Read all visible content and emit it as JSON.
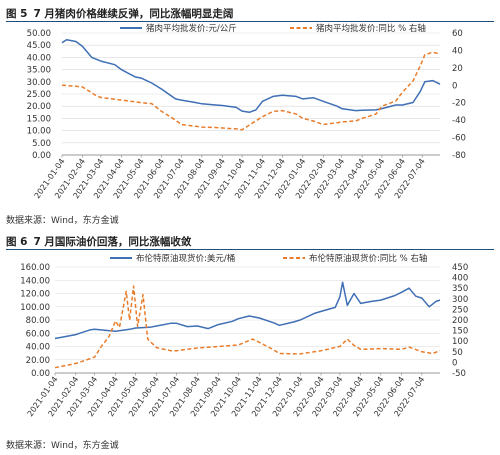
{
  "figures": [
    {
      "number": "图 5",
      "title": "7 月猪肉价格继续反弹，同比涨幅明显走阔",
      "source": "数据来源：Wind，东方金诚"
    },
    {
      "number": "图 6",
      "title": "7 月国际油价回落，同比涨幅收敛",
      "source": "数据来源：Wind，东方金诚"
    }
  ],
  "colors": {
    "blue": "#3f6fb5",
    "orange": "#e87c2b",
    "grid": "#d9d9d9",
    "axis": "#7f7f7f"
  },
  "chart_data": [
    {
      "type": "line",
      "x_ticks": [
        "2021-01-04",
        "2021-02-04",
        "2021-03-04",
        "2021-04-04",
        "2021-05-04",
        "2021-06-04",
        "2021-07-04",
        "2021-08-04",
        "2021-09-04",
        "2021-10-04",
        "2021-11-04",
        "2021-12-04",
        "2022-01-04",
        "2022-02-04",
        "2022-03-04",
        "2022-04-04",
        "2022-05-04",
        "2022-06-04",
        "2022-07-04"
      ],
      "x_range": [
        "2021-01-04",
        "2022-07-31"
      ],
      "y_left": {
        "ticks": [
          "0.00",
          "5.00",
          "10.00",
          "15.00",
          "20.00",
          "25.00",
          "30.00",
          "35.00",
          "40.00",
          "45.00",
          "50.00"
        ],
        "range": [
          0,
          50
        ]
      },
      "y_right": {
        "ticks": [
          "-80",
          "-60",
          "-40",
          "-20",
          "0",
          "20",
          "40",
          "60"
        ],
        "range": [
          -80,
          60
        ]
      },
      "legend_position": "top",
      "series": [
        {
          "name": "猪肉平均批发价:元/公斤",
          "axis": "left",
          "style": "solid",
          "points": [
            [
              "2021-01-04",
              46
            ],
            [
              "2021-01-11",
              47.2
            ],
            [
              "2021-01-25",
              46.5
            ],
            [
              "2021-02-04",
              44.5
            ],
            [
              "2021-02-18",
              40
            ],
            [
              "2021-03-04",
              38.5
            ],
            [
              "2021-03-25",
              37
            ],
            [
              "2021-04-04",
              35
            ],
            [
              "2021-04-25",
              32
            ],
            [
              "2021-05-04",
              31.5
            ],
            [
              "2021-05-20",
              29.5
            ],
            [
              "2021-06-04",
              27
            ],
            [
              "2021-06-25",
              23
            ],
            [
              "2021-07-04",
              22.5
            ],
            [
              "2021-07-25",
              21.5
            ],
            [
              "2021-08-04",
              21
            ],
            [
              "2021-08-25",
              20.5
            ],
            [
              "2021-09-04",
              20.3
            ],
            [
              "2021-09-25",
              19.5
            ],
            [
              "2021-10-04",
              18
            ],
            [
              "2021-10-15",
              17.5
            ],
            [
              "2021-10-25",
              18.5
            ],
            [
              "2021-11-04",
              22
            ],
            [
              "2021-11-20",
              24
            ],
            [
              "2021-12-04",
              24.5
            ],
            [
              "2021-12-25",
              24
            ],
            [
              "2022-01-04",
              23
            ],
            [
              "2022-01-20",
              23.5
            ],
            [
              "2022-02-04",
              22
            ],
            [
              "2022-02-25",
              20
            ],
            [
              "2022-03-04",
              19
            ],
            [
              "2022-03-25",
              18.2
            ],
            [
              "2022-04-04",
              18.3
            ],
            [
              "2022-04-25",
              18.5
            ],
            [
              "2022-05-04",
              19
            ],
            [
              "2022-05-25",
              20.5
            ],
            [
              "2022-06-04",
              20.5
            ],
            [
              "2022-06-20",
              21.5
            ],
            [
              "2022-07-01",
              26
            ],
            [
              "2022-07-08",
              30
            ],
            [
              "2022-07-20",
              30.5
            ],
            [
              "2022-07-31",
              29
            ]
          ]
        },
        {
          "name": "猪肉平均批发价:同比 % 右轴",
          "axis": "right",
          "style": "dashed",
          "points": [
            [
              "2021-01-04",
              0
            ],
            [
              "2021-01-25",
              -1
            ],
            [
              "2021-02-04",
              -2
            ],
            [
              "2021-02-25",
              -12
            ],
            [
              "2021-03-04",
              -14
            ],
            [
              "2021-03-25",
              -16
            ],
            [
              "2021-04-04",
              -17
            ],
            [
              "2021-04-25",
              -19
            ],
            [
              "2021-05-04",
              -20
            ],
            [
              "2021-05-20",
              -21
            ],
            [
              "2021-06-04",
              -30
            ],
            [
              "2021-06-25",
              -40
            ],
            [
              "2021-07-04",
              -45
            ],
            [
              "2021-07-25",
              -47
            ],
            [
              "2021-08-04",
              -48
            ],
            [
              "2021-08-25",
              -48.5
            ],
            [
              "2021-09-04",
              -49
            ],
            [
              "2021-09-25",
              -50
            ],
            [
              "2021-10-04",
              -51
            ],
            [
              "2021-11-04",
              -36
            ],
            [
              "2021-11-20",
              -30
            ],
            [
              "2021-12-04",
              -29
            ],
            [
              "2021-12-25",
              -33
            ],
            [
              "2022-01-04",
              -38
            ],
            [
              "2022-01-20",
              -41
            ],
            [
              "2022-02-04",
              -45
            ],
            [
              "2022-02-25",
              -43
            ],
            [
              "2022-03-04",
              -42
            ],
            [
              "2022-03-25",
              -41
            ],
            [
              "2022-04-04",
              -38
            ],
            [
              "2022-04-25",
              -33
            ],
            [
              "2022-05-04",
              -24
            ],
            [
              "2022-05-25",
              -18
            ],
            [
              "2022-06-04",
              -8
            ],
            [
              "2022-06-20",
              5
            ],
            [
              "2022-07-01",
              22
            ],
            [
              "2022-07-08",
              35
            ],
            [
              "2022-07-20",
              38
            ],
            [
              "2022-07-31",
              36
            ]
          ]
        }
      ]
    },
    {
      "type": "line",
      "x_ticks": [
        "2021-01-04",
        "2021-02-04",
        "2021-03-04",
        "2021-04-04",
        "2021-05-04",
        "2021-06-04",
        "2021-07-04",
        "2021-08-04",
        "2021-09-04",
        "2021-10-04",
        "2021-11-04",
        "2021-12-04",
        "2022-01-04",
        "2022-02-04",
        "2022-03-04",
        "2022-04-04",
        "2022-05-04",
        "2022-06-04",
        "2022-07-04"
      ],
      "x_range": [
        "2021-01-04",
        "2022-07-31"
      ],
      "y_left": {
        "ticks": [
          "0.00",
          "20.00",
          "40.00",
          "60.00",
          "80.00",
          "100.00",
          "120.00",
          "140.00",
          "160.00"
        ],
        "range": [
          0,
          160
        ]
      },
      "y_right": {
        "ticks": [
          "-50",
          "0",
          "50",
          "100",
          "150",
          "200",
          "250",
          "300",
          "350",
          "400",
          "450"
        ],
        "range": [
          -50,
          450
        ]
      },
      "legend_position": "top",
      "series": [
        {
          "name": "布伦特原油现货价:美元/桶",
          "axis": "left",
          "style": "solid",
          "points": [
            [
              "2021-01-04",
              52
            ],
            [
              "2021-02-04",
              58
            ],
            [
              "2021-02-25",
              65
            ],
            [
              "2021-03-04",
              66
            ],
            [
              "2021-03-25",
              64
            ],
            [
              "2021-04-04",
              63
            ],
            [
              "2021-04-25",
              66
            ],
            [
              "2021-05-04",
              68
            ],
            [
              "2021-05-25",
              69
            ],
            [
              "2021-06-04",
              71
            ],
            [
              "2021-06-25",
              75
            ],
            [
              "2021-07-04",
              75
            ],
            [
              "2021-07-20",
              70
            ],
            [
              "2021-08-04",
              71
            ],
            [
              "2021-08-20",
              67
            ],
            [
              "2021-09-04",
              73
            ],
            [
              "2021-09-25",
              78
            ],
            [
              "2021-10-04",
              82
            ],
            [
              "2021-10-20",
              86
            ],
            [
              "2021-11-04",
              83
            ],
            [
              "2021-11-25",
              76
            ],
            [
              "2021-12-04",
              72
            ],
            [
              "2021-12-25",
              77
            ],
            [
              "2022-01-04",
              80
            ],
            [
              "2022-01-25",
              90
            ],
            [
              "2022-02-04",
              93
            ],
            [
              "2022-02-25",
              99
            ],
            [
              "2022-03-04",
              115
            ],
            [
              "2022-03-08",
              137
            ],
            [
              "2022-03-15",
              102
            ],
            [
              "2022-03-25",
              120
            ],
            [
              "2022-04-04",
              105
            ],
            [
              "2022-04-20",
              108
            ],
            [
              "2022-05-04",
              110
            ],
            [
              "2022-05-25",
              117
            ],
            [
              "2022-06-04",
              122
            ],
            [
              "2022-06-15",
              128
            ],
            [
              "2022-06-25",
              116
            ],
            [
              "2022-07-04",
              113
            ],
            [
              "2022-07-15",
              100
            ],
            [
              "2022-07-25",
              108
            ],
            [
              "2022-07-31",
              110
            ]
          ]
        },
        {
          "name": "布伦特原油现货价:同比 % 右轴",
          "axis": "right",
          "style": "dashed",
          "points": [
            [
              "2021-01-04",
              -25
            ],
            [
              "2021-02-04",
              -5
            ],
            [
              "2021-03-04",
              25
            ],
            [
              "2021-03-15",
              80
            ],
            [
              "2021-03-25",
              120
            ],
            [
              "2021-04-04",
              195
            ],
            [
              "2021-04-10",
              165
            ],
            [
              "2021-04-20",
              335
            ],
            [
              "2021-04-25",
              200
            ],
            [
              "2021-05-01",
              360
            ],
            [
              "2021-05-07",
              170
            ],
            [
              "2021-05-15",
              320
            ],
            [
              "2021-05-22",
              110
            ],
            [
              "2021-06-04",
              70
            ],
            [
              "2021-06-25",
              55
            ],
            [
              "2021-07-04",
              55
            ],
            [
              "2021-08-04",
              68
            ],
            [
              "2021-09-04",
              75
            ],
            [
              "2021-10-04",
              82
            ],
            [
              "2021-10-25",
              110
            ],
            [
              "2021-11-04",
              95
            ],
            [
              "2021-11-25",
              60
            ],
            [
              "2021-12-04",
              42
            ],
            [
              "2022-01-04",
              40
            ],
            [
              "2022-02-04",
              55
            ],
            [
              "2022-03-04",
              75
            ],
            [
              "2022-03-15",
              110
            ],
            [
              "2022-03-25",
              80
            ],
            [
              "2022-04-04",
              62
            ],
            [
              "2022-05-04",
              65
            ],
            [
              "2022-06-04",
              62
            ],
            [
              "2022-06-15",
              72
            ],
            [
              "2022-07-04",
              50
            ],
            [
              "2022-07-20",
              42
            ],
            [
              "2022-07-31",
              55
            ]
          ]
        }
      ]
    }
  ]
}
